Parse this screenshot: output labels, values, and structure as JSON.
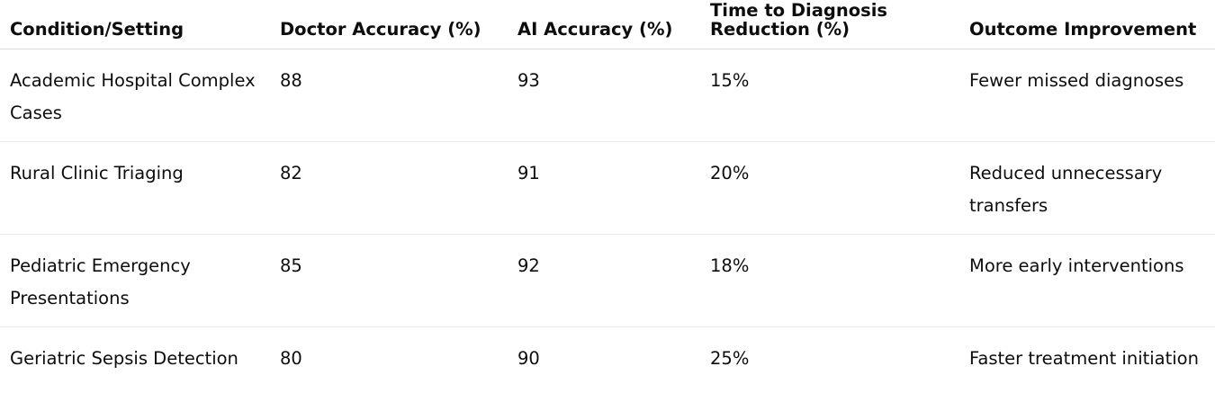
{
  "table": {
    "headers": [
      "Condition/Setting",
      "Doctor Accuracy (%)",
      "AI Accuracy (%)",
      "Time to Diagnosis Reduction (%)",
      "Outcome Improvement"
    ],
    "rows": [
      [
        "Academic Hospital Complex Cases",
        "88",
        "93",
        "15%",
        "Fewer missed diagnoses"
      ],
      [
        "Rural Clinic Triaging",
        "82",
        "91",
        "20%",
        "Reduced unnecessary transfers"
      ],
      [
        "Pediatric Emergency Presentations",
        "85",
        "92",
        "18%",
        "More early interventions"
      ],
      [
        "Geriatric Sepsis Detection",
        "80",
        "90",
        "25%",
        "Faster treatment initiation"
      ]
    ]
  }
}
